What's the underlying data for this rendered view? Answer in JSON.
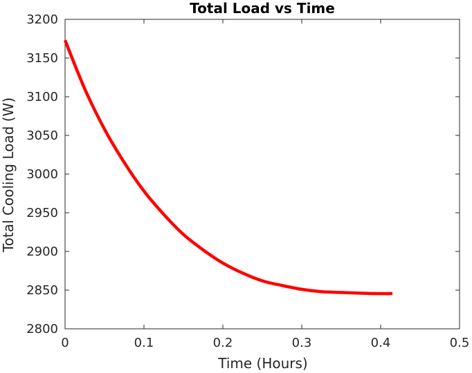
{
  "chart_data": {
    "type": "line",
    "title": "Total Load vs Time",
    "xlabel": "Time (Hours)",
    "ylabel": "Total Cooling Load (W)",
    "xlim": [
      0,
      0.5
    ],
    "ylim": [
      2800,
      3200
    ],
    "x_ticks": [
      0,
      0.1,
      0.2,
      0.3,
      0.4,
      0.5
    ],
    "x_tick_labels": [
      "0",
      "0.1",
      "0.2",
      "0.3",
      "0.4",
      "0.5"
    ],
    "y_ticks": [
      2800,
      2850,
      2900,
      2950,
      3000,
      3050,
      3100,
      3150,
      3200
    ],
    "y_tick_labels": [
      "2800",
      "2850",
      "2900",
      "2950",
      "3000",
      "3050",
      "3100",
      "3150",
      "3200"
    ],
    "grid": false,
    "series": [
      {
        "color": "#ff0000",
        "x": [
          0,
          0.025,
          0.05,
          0.075,
          0.1,
          0.125,
          0.15,
          0.175,
          0.2,
          0.225,
          0.25,
          0.275,
          0.3,
          0.325,
          0.35,
          0.375,
          0.4,
          0.415
        ],
        "y": [
          3173,
          3110,
          3058,
          3015,
          2978,
          2948,
          2922,
          2902,
          2885,
          2872,
          2862,
          2856,
          2851,
          2848,
          2847,
          2846,
          2845.5,
          2845.5
        ]
      }
    ]
  }
}
